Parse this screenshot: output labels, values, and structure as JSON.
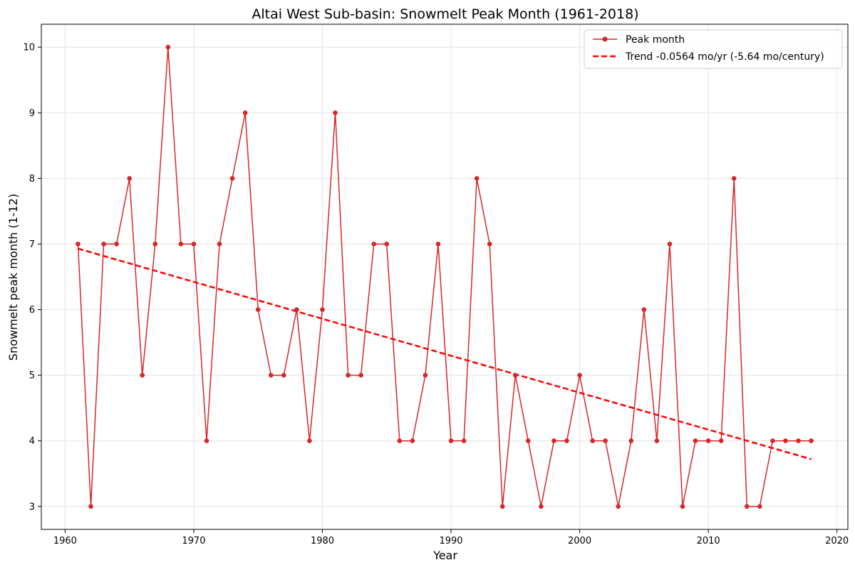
{
  "chart_data": {
    "type": "line",
    "title": "Altai West Sub-basin: Snowmelt Peak Month (1961-2018)",
    "xlabel": "Year",
    "ylabel": "Snowmelt peak month (1-12)",
    "xlim": [
      1958.15,
      2020.85
    ],
    "ylim": [
      2.65,
      10.35
    ],
    "xticks": [
      1960,
      1970,
      1980,
      1990,
      2000,
      2010,
      2020
    ],
    "yticks": [
      3,
      4,
      5,
      6,
      7,
      8,
      9,
      10
    ],
    "grid": true,
    "legend_position": "top-right",
    "series": [
      {
        "name": "Peak month",
        "color": "#d62728",
        "marker": "circle",
        "x": [
          1961,
          1962,
          1963,
          1964,
          1965,
          1966,
          1967,
          1968,
          1969,
          1970,
          1971,
          1972,
          1973,
          1974,
          1975,
          1976,
          1977,
          1978,
          1979,
          1980,
          1981,
          1982,
          1983,
          1984,
          1985,
          1986,
          1987,
          1988,
          1989,
          1990,
          1991,
          1992,
          1993,
          1994,
          1995,
          1996,
          1997,
          1998,
          1999,
          2000,
          2001,
          2002,
          2003,
          2004,
          2005,
          2006,
          2007,
          2008,
          2009,
          2010,
          2011,
          2012,
          2013,
          2014,
          2015,
          2016,
          2017,
          2018
        ],
        "y": [
          7,
          3,
          7,
          7,
          8,
          5,
          7,
          10,
          7,
          7,
          4,
          7,
          8,
          9,
          6,
          5,
          5,
          6,
          4,
          6,
          9,
          5,
          5,
          7,
          7,
          4,
          4,
          5,
          7,
          4,
          4,
          8,
          7,
          3,
          5,
          4,
          3,
          4,
          4,
          5,
          4,
          4,
          3,
          4,
          6,
          4,
          7,
          3,
          4,
          4,
          4,
          8,
          3,
          3,
          4,
          4,
          4,
          4
        ]
      },
      {
        "name": "Trend -0.0564 mo/yr (-5.64 mo/century)",
        "color": "#ff0000",
        "style": "dashed",
        "x": [
          1961,
          2018
        ],
        "y": [
          6.93,
          3.72
        ]
      }
    ]
  }
}
